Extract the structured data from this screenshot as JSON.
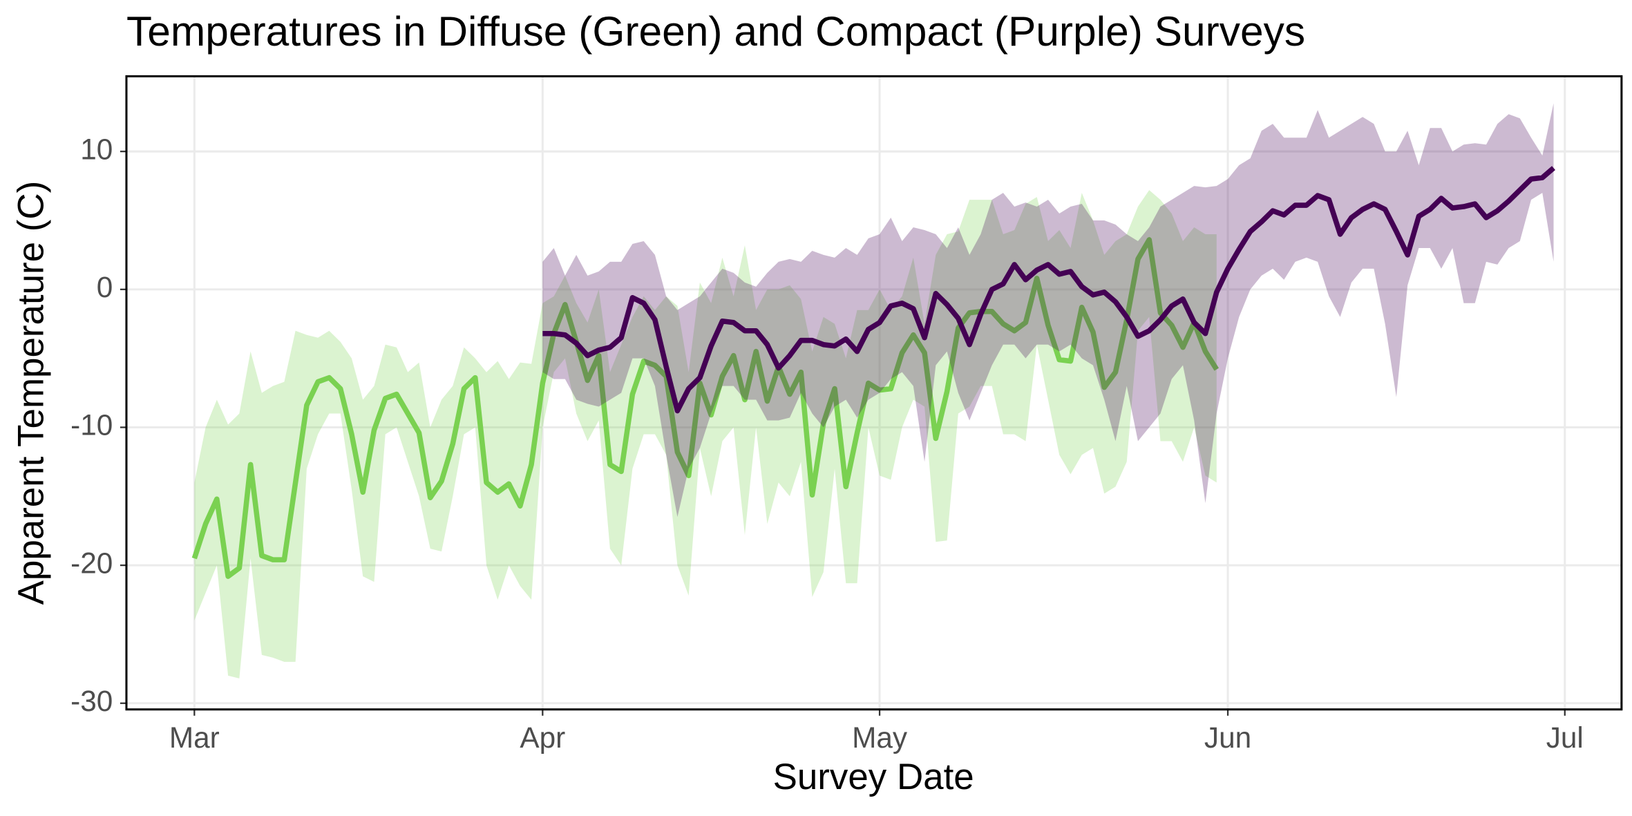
{
  "chart_data": {
    "type": "line",
    "title": "Temperatures in Diffuse (Green) and Compact (Purple) Surveys",
    "x_label": "Survey Date",
    "y_label": "Apparent Temperature (C)",
    "xlim": [
      -6.05,
      127.05
    ],
    "xticks": [
      {
        "value": 0,
        "label": "Mar"
      },
      {
        "value": 31,
        "label": "Apr"
      },
      {
        "value": 61,
        "label": "May"
      },
      {
        "value": 92,
        "label": "Jun"
      },
      {
        "value": 122,
        "label": "Jul"
      }
    ],
    "ylim": [
      -30.45,
      15.45
    ],
    "yticks": [
      -30,
      -20,
      -10,
      0,
      10
    ],
    "grid": true,
    "series": [
      {
        "color": "#7ad151",
        "x": [
          0,
          1,
          2,
          3,
          4,
          5,
          6,
          7,
          8,
          9,
          10,
          11,
          12,
          13,
          14,
          15,
          16,
          17,
          18,
          19,
          20,
          21,
          22,
          23,
          24,
          25,
          26,
          27,
          28,
          29,
          30,
          31,
          32,
          33,
          34,
          35,
          36,
          37,
          38,
          39,
          40,
          41,
          42,
          43,
          44,
          45,
          46,
          47,
          48,
          49,
          50,
          51,
          52,
          53,
          54,
          55,
          56,
          57,
          58,
          59,
          60,
          61,
          62,
          63,
          64,
          65,
          66,
          67,
          68,
          69,
          70,
          71,
          72,
          73,
          74,
          75,
          76,
          77,
          78,
          79,
          80,
          81,
          82,
          83,
          84,
          85,
          86,
          87,
          88,
          89,
          90,
          91
        ],
        "values": [
          -19.5,
          -17,
          -15.2,
          -20.8,
          -20.2,
          -12.7,
          -19.3,
          -19.6,
          -19.6,
          -14,
          -8.4,
          -6.7,
          -6.4,
          -7.2,
          -10.5,
          -14.7,
          -10.2,
          -7.9,
          -7.6,
          -9,
          -10.4,
          -15.1,
          -13.9,
          -11.2,
          -7.2,
          -6.4,
          -14,
          -14.7,
          -14.1,
          -15.7,
          -12.7,
          -6.8,
          -3.2,
          -1.1,
          -3.8,
          -6.6,
          -4.8,
          -12.7,
          -13.2,
          -7.6,
          -5.2,
          -5.5,
          -6.3,
          -11.8,
          -13.5,
          -6.8,
          -9.1,
          -6.3,
          -4.8,
          -8,
          -4.5,
          -8.1,
          -5.6,
          -7.6,
          -6,
          -14.9,
          -9.7,
          -7.2,
          -14.3,
          -10.4,
          -6.8,
          -7.3,
          -7.2,
          -4.6,
          -3.3,
          -4.6,
          -10.8,
          -7.4,
          -2.8,
          -1.7,
          -1.6,
          -1.6,
          -2.5,
          -3,
          -2.4,
          0.8,
          -2.6,
          -5.1,
          -5.2,
          -1.3,
          -3.1,
          -7.1,
          -6,
          -2.2,
          2.2,
          3.6,
          -1.7,
          -2.6,
          -4.2,
          -2.4,
          -4.5,
          -5.8
        ],
        "upper": [
          -14,
          -10,
          -8,
          -9.8,
          -9,
          -4.5,
          -7.5,
          -7,
          -6.7,
          -3,
          -3.3,
          -3.5,
          -3,
          -3.8,
          -5,
          -8,
          -7,
          -4,
          -4.2,
          -6,
          -5.3,
          -10,
          -8,
          -7,
          -4.2,
          -5,
          -6,
          -5.2,
          -6.5,
          -5.3,
          -5.4,
          -1,
          -0.5,
          1,
          -1,
          -2.4,
          0,
          -6,
          -4,
          -2,
          -0.5,
          -1.5,
          -0.5,
          -1.2,
          -6,
          0.5,
          -1,
          2.3,
          -0.5,
          3.2,
          -1.5,
          0,
          0,
          0.3,
          -0.7,
          -4.5,
          -2,
          -2.5,
          -5,
          -1.5,
          -1.5,
          0,
          -1.5,
          -0.5,
          2.3,
          -2.5,
          2.5,
          4,
          4.2,
          6.5,
          6.5,
          6.5,
          4,
          4.3,
          6.2,
          6.7,
          3.5,
          4.3,
          3,
          7,
          5,
          2.5,
          3.5,
          4,
          6,
          7.2,
          6.5,
          5.5,
          3.5,
          4.5,
          4,
          4
        ],
        "lower": [
          -24,
          -22,
          -20,
          -28,
          -28.2,
          -19.5,
          -26.5,
          -26.7,
          -27,
          -27,
          -13,
          -10.5,
          -9,
          -9,
          -14.5,
          -20.8,
          -21.2,
          -10.5,
          -10,
          -12.5,
          -15,
          -18.8,
          -19,
          -15,
          -10.5,
          -10,
          -20,
          -22.5,
          -20,
          -21.5,
          -22.5,
          -10,
          -6,
          -5,
          -9,
          -11,
          -9.5,
          -18.8,
          -20,
          -13,
          -10.5,
          -10.5,
          -12,
          -20,
          -22.2,
          -11.5,
          -15,
          -11,
          -10,
          -17.8,
          -10,
          -17,
          -14,
          -15,
          -12.5,
          -22.3,
          -20.5,
          -13,
          -21.3,
          -21.3,
          -10,
          -13.5,
          -13.8,
          -10,
          -8,
          -8.5,
          -18.3,
          -18.2,
          -9,
          -8.5,
          -7,
          -7,
          -10.5,
          -10.5,
          -11,
          -4,
          -8,
          -12,
          -13.4,
          -12,
          -11.5,
          -14.8,
          -14.3,
          -12.5,
          -3,
          -2,
          -11,
          -11,
          -12.5,
          -10,
          -13.5,
          -14
        ]
      },
      {
        "color": "#440154",
        "x": [
          31,
          32,
          33,
          34,
          35,
          36,
          37,
          38,
          39,
          40,
          41,
          42,
          43,
          44,
          45,
          46,
          47,
          48,
          49,
          50,
          51,
          52,
          53,
          54,
          55,
          56,
          57,
          58,
          59,
          60,
          61,
          62,
          63,
          64,
          65,
          66,
          67,
          68,
          69,
          70,
          71,
          72,
          73,
          74,
          75,
          76,
          77,
          78,
          79,
          80,
          81,
          82,
          83,
          84,
          85,
          86,
          87,
          88,
          89,
          90,
          91,
          92,
          93,
          94,
          95,
          96,
          97,
          98,
          99,
          100,
          101,
          102,
          103,
          104,
          105,
          106,
          107,
          108,
          109,
          110,
          111,
          112,
          113,
          114,
          115,
          116,
          117,
          118,
          119,
          120,
          121
        ],
        "values": [
          -3.2,
          -3.2,
          -3.3,
          -3.9,
          -4.8,
          -4.4,
          -4.2,
          -3.5,
          -0.6,
          -1,
          -2.2,
          -5.6,
          -8.8,
          -7.2,
          -6.4,
          -4.1,
          -2.3,
          -2.4,
          -3,
          -3,
          -4,
          -5.7,
          -4.8,
          -3.7,
          -3.7,
          -4,
          -4.1,
          -3.6,
          -4.5,
          -2.9,
          -2.4,
          -1.2,
          -1,
          -1.4,
          -3.5,
          -0.3,
          -1.1,
          -2.1,
          -4,
          -1.8,
          0,
          0.4,
          1.8,
          0.7,
          1.4,
          1.8,
          1.1,
          1.3,
          0.2,
          -0.4,
          -0.2,
          -0.9,
          -2,
          -3.4,
          -3,
          -2.2,
          -1.2,
          -0.7,
          -2.4,
          -3.2,
          -0.2,
          1.5,
          2.9,
          4.2,
          4.9,
          5.7,
          5.4,
          6.1,
          6.1,
          6.8,
          6.5,
          4,
          5.2,
          5.8,
          6.2,
          5.8,
          4.2,
          2.5,
          5.3,
          5.8,
          6.6,
          5.9,
          6,
          6.2,
          5.2,
          5.7,
          6.4,
          7.2,
          8,
          8.1,
          8.8
        ],
        "upper": [
          2,
          3,
          1,
          2.5,
          1,
          1.3,
          2,
          2,
          3.3,
          3.5,
          2.5,
          -0.5,
          -1.5,
          -1,
          -0.5,
          0.5,
          1.5,
          1.2,
          0.5,
          0.2,
          1.2,
          2,
          2.2,
          2,
          2.8,
          2.5,
          2.3,
          3,
          2.5,
          3.7,
          4,
          5.2,
          3.5,
          4.5,
          4.3,
          4,
          3,
          4.5,
          2.5,
          4,
          6.5,
          7,
          6,
          6.3,
          6,
          6.5,
          5.5,
          6,
          6.2,
          5,
          5,
          4.7,
          4,
          3.5,
          4.5,
          6,
          6.5,
          7,
          7.5,
          7.4,
          7.5,
          8,
          9,
          9.5,
          11.5,
          12,
          11,
          11,
          11,
          13,
          11,
          11.5,
          12,
          12.5,
          12,
          10,
          10,
          11.5,
          9,
          11.7,
          11.7,
          10,
          10.5,
          10.6,
          10.5,
          12,
          12.7,
          12.4,
          11,
          9.7,
          13.5
        ],
        "lower": [
          -6,
          -6.5,
          -6.5,
          -8,
          -8.3,
          -8.5,
          -8,
          -7.5,
          -5,
          -5,
          -7,
          -12,
          -16.5,
          -13,
          -11.5,
          -9,
          -7,
          -7,
          -8,
          -8,
          -9.5,
          -9.5,
          -9.3,
          -7.5,
          -9,
          -10,
          -8.5,
          -8,
          -9.3,
          -8,
          -7.5,
          -6.5,
          -6,
          -7,
          -12.5,
          -5.5,
          -4.5,
          -7.5,
          -9.5,
          -7.5,
          -5.5,
          -4,
          -4,
          -5,
          -4,
          -4,
          -4.5,
          -4,
          -5,
          -5.5,
          -8,
          -11,
          -7,
          -11,
          -10,
          -9,
          -6.5,
          -5.5,
          -9.5,
          -15.5,
          -9,
          -5,
          -2,
          0,
          1,
          1.5,
          0.7,
          2,
          2.3,
          2,
          -0.5,
          -2,
          0.5,
          1.5,
          1.5,
          -2.5,
          -7.8,
          0.3,
          3,
          3,
          1.5,
          3,
          -1,
          -1,
          2,
          1.8,
          3,
          3.5,
          6.5,
          7,
          2
        ]
      }
    ]
  }
}
